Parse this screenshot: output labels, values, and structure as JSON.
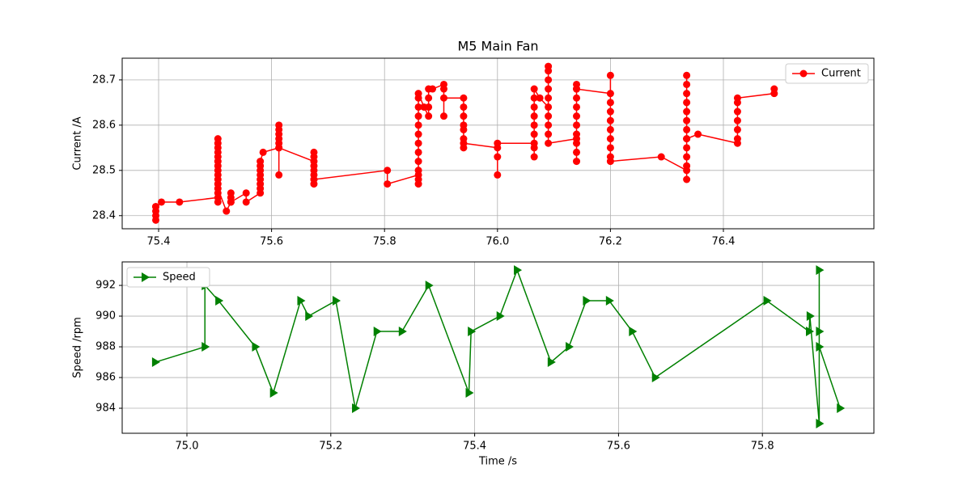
{
  "chart_data": [
    {
      "type": "line",
      "title": "M5 Main Fan",
      "ylabel": "Current /A",
      "xlim": [
        75.3355,
        76.6665
      ],
      "ylim": [
        28.371,
        28.748
      ],
      "xticks": [
        75.4,
        75.6,
        75.8,
        {
          "value": 76.0,
          "label": "76.0"
        },
        76.2,
        76.4
      ],
      "yticks": [
        28.4,
        28.5,
        28.6,
        28.7
      ],
      "grid": true,
      "legend": "upper right",
      "series": [
        {
          "name": "Current",
          "color": "#ff0000",
          "marker": "circle",
          "x": [
            75.395,
            75.395,
            75.395,
            75.395,
            75.395,
            75.405,
            75.437,
            75.505,
            75.505,
            75.505,
            75.505,
            75.505,
            75.505,
            75.505,
            75.505,
            75.505,
            75.505,
            75.505,
            75.505,
            75.505,
            75.505,
            75.505,
            75.52,
            75.528,
            75.528,
            75.528,
            75.528,
            75.555,
            75.555,
            75.58,
            75.58,
            75.58,
            75.58,
            75.58,
            75.58,
            75.58,
            75.58,
            75.585,
            75.613,
            75.613,
            75.613,
            75.613,
            75.613,
            75.613,
            75.613,
            75.613,
            75.675,
            75.675,
            75.675,
            75.675,
            75.675,
            75.675,
            75.675,
            75.675,
            75.675,
            75.805,
            75.805,
            75.86,
            75.86,
            75.86,
            75.86,
            75.86,
            75.86,
            75.86,
            75.86,
            75.86,
            75.86,
            75.86,
            75.86,
            75.86,
            75.87,
            75.878,
            75.878,
            75.878,
            75.878,
            75.885,
            75.905,
            75.905,
            75.905,
            75.905,
            75.94,
            75.94,
            75.94,
            75.94,
            75.94,
            75.94,
            75.94,
            75.94,
            76.0,
            76.0,
            76.0,
            76.0,
            76.065,
            76.065,
            76.065,
            76.065,
            76.065,
            76.065,
            76.065,
            76.065,
            76.065,
            76.075,
            76.09,
            76.09,
            76.09,
            76.09,
            76.09,
            76.09,
            76.09,
            76.09,
            76.09,
            76.09,
            76.14,
            76.14,
            76.14,
            76.14,
            76.14,
            76.14,
            76.14,
            76.14,
            76.14,
            76.14,
            76.14,
            76.14,
            76.2,
            76.2,
            76.2,
            76.2,
            76.2,
            76.2,
            76.2,
            76.2,
            76.2,
            76.2,
            76.29,
            76.335,
            76.335,
            76.335,
            76.335,
            76.335,
            76.335,
            76.335,
            76.335,
            76.335,
            76.335,
            76.335,
            76.335,
            76.335,
            76.335,
            76.355,
            76.425,
            76.425,
            76.425,
            76.425,
            76.425,
            76.425,
            76.425,
            76.49,
            76.49
          ],
          "values": [
            28.42,
            28.41,
            28.4,
            28.39,
            28.42,
            28.43,
            28.43,
            28.44,
            28.43,
            28.45,
            28.47,
            28.49,
            28.51,
            28.53,
            28.55,
            28.57,
            28.56,
            28.54,
            28.52,
            28.5,
            28.48,
            28.46,
            28.41,
            28.43,
            28.44,
            28.45,
            28.43,
            28.45,
            28.43,
            28.45,
            28.46,
            28.47,
            28.48,
            28.49,
            28.5,
            28.51,
            28.52,
            28.54,
            28.55,
            28.56,
            28.57,
            28.58,
            28.59,
            28.6,
            28.49,
            28.55,
            28.52,
            28.54,
            28.53,
            28.51,
            28.5,
            28.49,
            28.48,
            28.47,
            28.48,
            28.5,
            28.47,
            28.49,
            28.47,
            28.48,
            28.5,
            28.52,
            28.54,
            28.56,
            28.58,
            28.6,
            28.62,
            28.64,
            28.66,
            28.67,
            28.64,
            28.62,
            28.64,
            28.66,
            28.68,
            28.68,
            28.69,
            28.68,
            28.62,
            28.66,
            28.66,
            28.64,
            28.62,
            28.6,
            28.59,
            28.57,
            28.55,
            28.56,
            28.55,
            28.53,
            28.49,
            28.56,
            28.56,
            28.55,
            28.53,
            28.58,
            28.6,
            28.62,
            28.64,
            28.66,
            28.68,
            28.66,
            28.64,
            28.66,
            28.68,
            28.7,
            28.72,
            28.73,
            28.62,
            28.6,
            28.58,
            28.56,
            28.57,
            28.52,
            28.54,
            28.56,
            28.58,
            28.6,
            28.62,
            28.64,
            28.66,
            28.68,
            28.69,
            28.68,
            28.67,
            28.71,
            28.65,
            28.63,
            28.61,
            28.59,
            28.57,
            28.55,
            28.53,
            28.52,
            28.53,
            28.5,
            28.48,
            28.51,
            28.53,
            28.55,
            28.57,
            28.59,
            28.61,
            28.63,
            28.65,
            28.67,
            28.69,
            28.71,
            28.57,
            28.58,
            28.56,
            28.57,
            28.59,
            28.61,
            28.63,
            28.65,
            28.66,
            28.67,
            28.68
          ]
        }
      ]
    },
    {
      "type": "line",
      "xlabel": "Time /s",
      "ylabel": "Speed /rpm",
      "xlim": [
        74.91,
        75.955
      ],
      "ylim": [
        982.37,
        993.53
      ],
      "xticks": [
        {
          "value": 75.0,
          "label": "75.0"
        },
        75.2,
        75.4,
        75.6,
        75.8
      ],
      "yticks": [
        984,
        986,
        988,
        990,
        992
      ],
      "grid": true,
      "legend": "upper left",
      "series": [
        {
          "name": "Speed",
          "color": "#008000",
          "marker": "triangle-right",
          "x": [
            74.956,
            75.025,
            75.025,
            75.044,
            75.095,
            75.12,
            75.158,
            75.169,
            75.207,
            75.234,
            75.264,
            75.299,
            75.336,
            75.392,
            75.395,
            75.435,
            75.459,
            75.506,
            75.531,
            75.555,
            75.587,
            75.619,
            75.651,
            75.806,
            75.865,
            75.866,
            75.879,
            75.879,
            75.879,
            75.879,
            75.908
          ],
          "values": [
            987,
            988,
            992,
            991,
            988,
            985,
            991,
            990,
            991,
            984,
            989,
            989,
            992,
            985,
            989,
            990,
            993,
            987,
            988,
            991,
            991,
            989,
            986,
            991,
            989,
            990,
            983,
            993,
            989,
            988,
            984
          ]
        }
      ]
    }
  ]
}
